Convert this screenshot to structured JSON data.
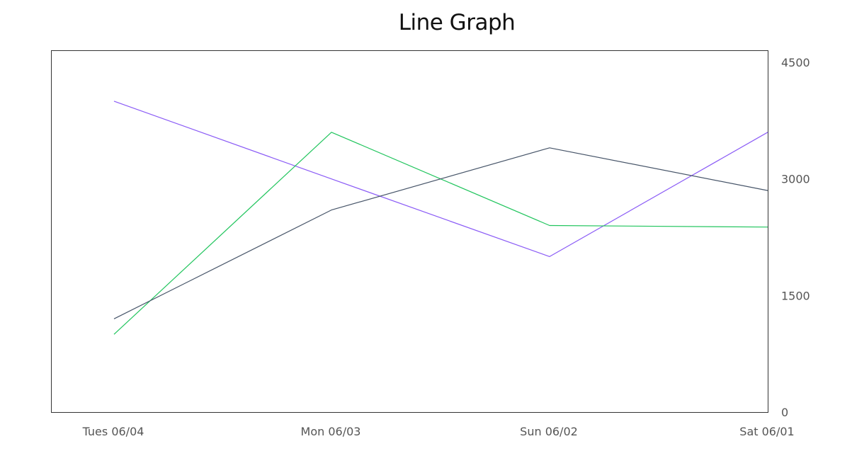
{
  "chart_data": {
    "type": "line",
    "title": "Line Graph",
    "xlabel": "",
    "ylabel": "",
    "categories": [
      "Tues 06/04",
      "Mon 06/03",
      "Sun 06/02",
      "Sat 06/01"
    ],
    "ylim": [
      0,
      4500
    ],
    "yticks": [
      0,
      1500,
      3000,
      4500
    ],
    "y_axis_side": "right",
    "grid": false,
    "legend": "none",
    "series": [
      {
        "color": "#8b5cf6",
        "values": [
          4000,
          3000,
          2000,
          3600
        ]
      },
      {
        "color": "#22c55e",
        "values": [
          1000,
          3600,
          2400,
          2380
        ]
      },
      {
        "color": "#475569",
        "values": [
          1200,
          2600,
          3400,
          2850
        ]
      }
    ]
  }
}
